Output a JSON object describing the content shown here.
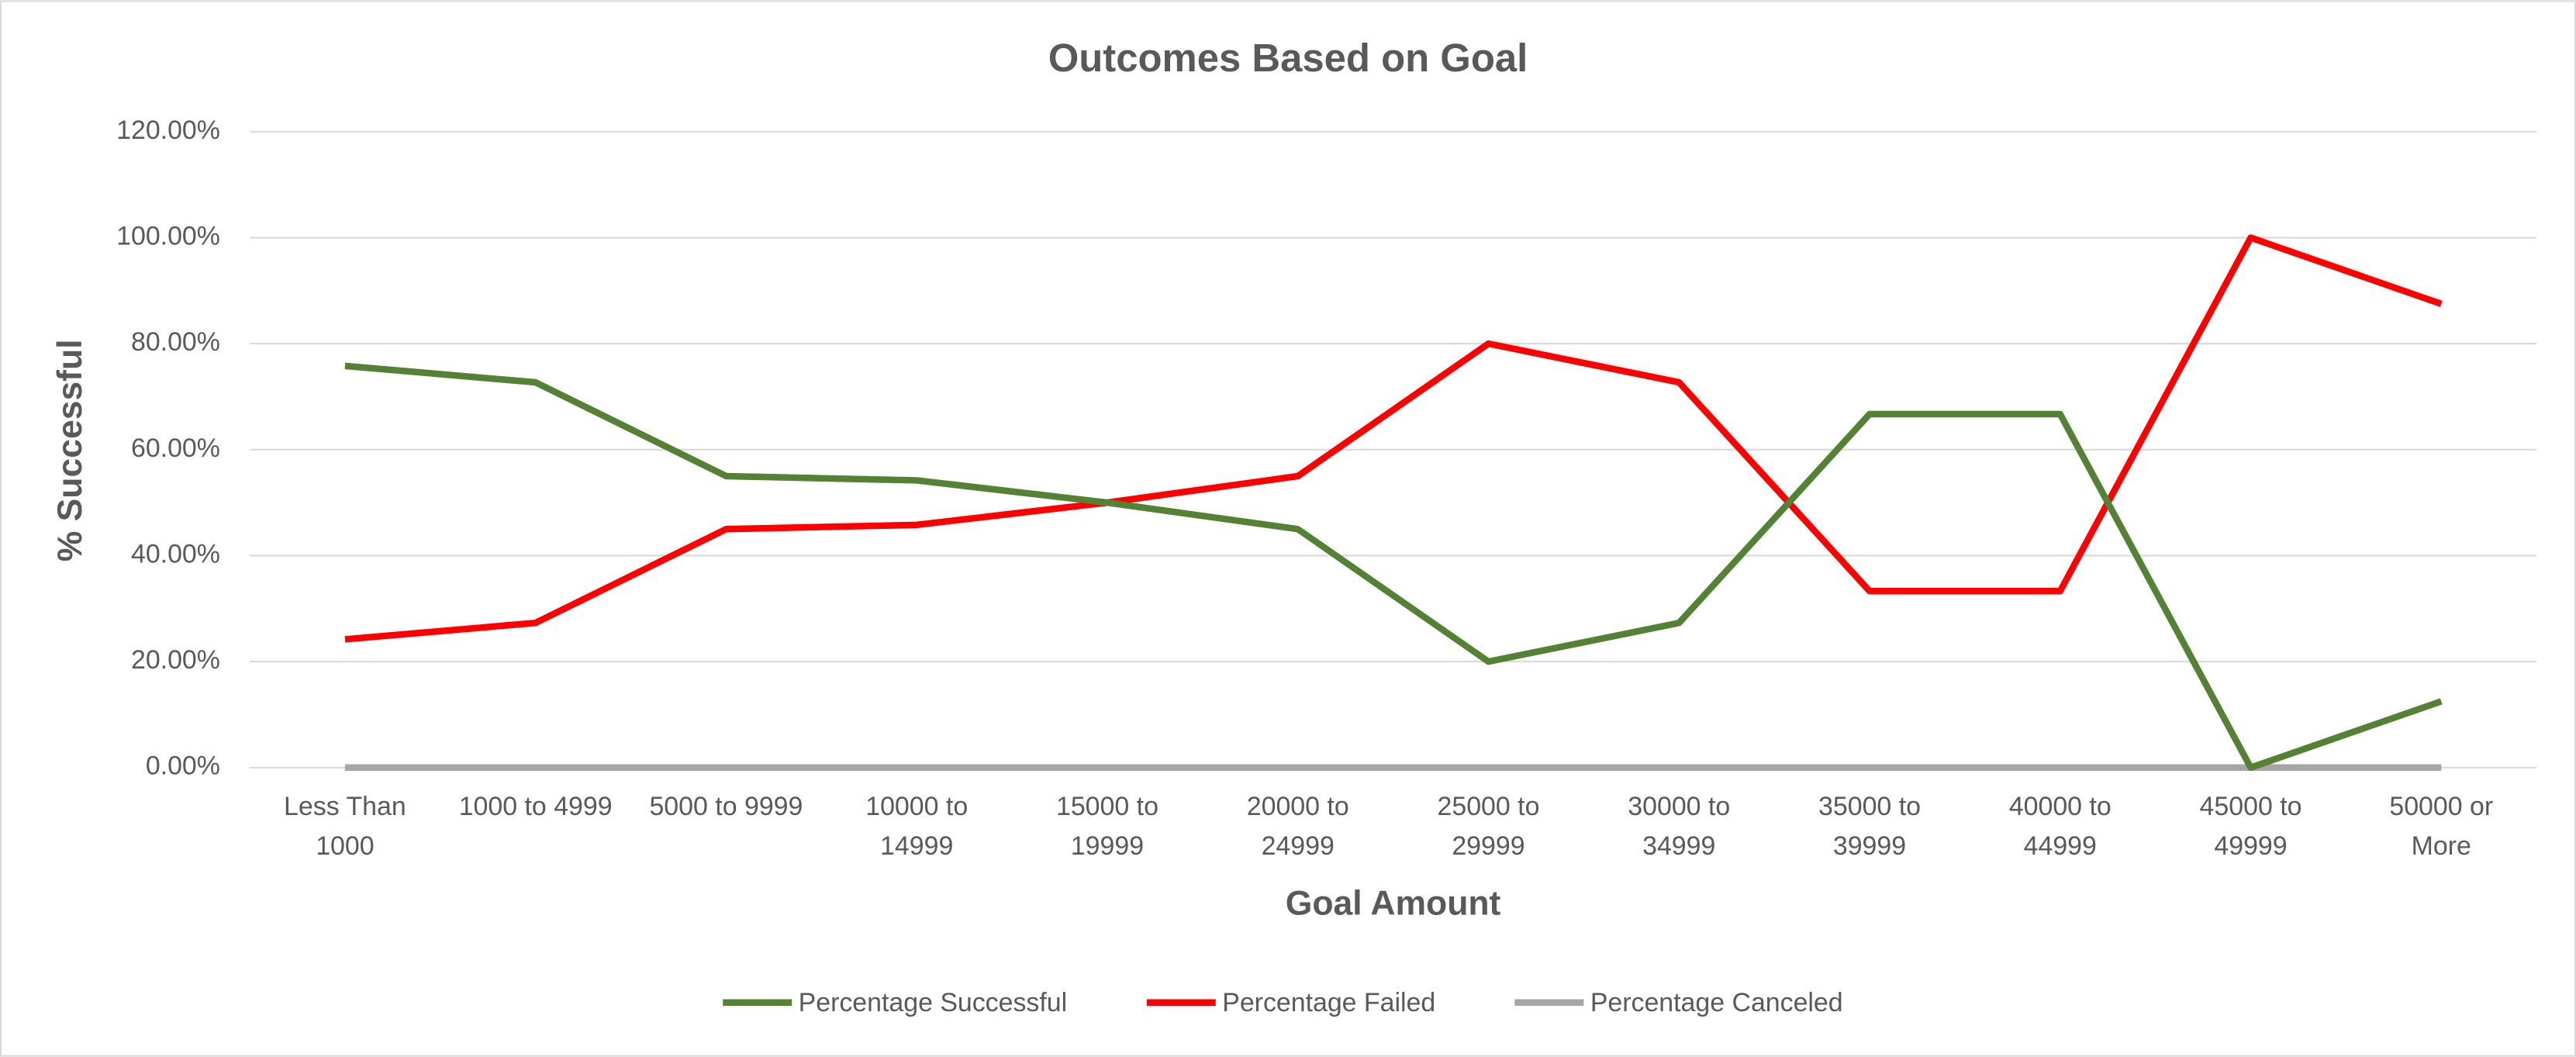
{
  "chart_data": {
    "type": "line",
    "title": "Outcomes Based on Goal",
    "x_label": "Goal Amount",
    "y_label": "% Successful",
    "categories": [
      "Less Than 1000",
      "1000 to 4999",
      "5000 to 9999",
      "10000 to 14999",
      "15000 to 19999",
      "20000 to 24999",
      "25000 to 29999",
      "30000 to 34999",
      "35000 to 39999",
      "40000 to 44999",
      "45000 to 49999",
      "50000 or More"
    ],
    "series": [
      {
        "name": "Percentage Successful",
        "color": "#548235",
        "values": [
          75.8,
          72.7,
          55,
          54.2,
          50,
          45,
          20,
          27.3,
          66.7,
          66.7,
          0,
          12.5
        ]
      },
      {
        "name": "Percentage Failed",
        "color": "#ff0000",
        "values": [
          24.2,
          27.3,
          45,
          45.8,
          50,
          55,
          80,
          72.7,
          33.3,
          33.3,
          100,
          87.5
        ]
      },
      {
        "name": "Percentage Canceled",
        "color": "#a5a5a5",
        "values": [
          0,
          0,
          0,
          0,
          0,
          0,
          0,
          0,
          0,
          0,
          0,
          0
        ]
      }
    ],
    "ylim": [
      0,
      120
    ],
    "yticks": [
      {
        "value": 0,
        "label": "0.00%"
      },
      {
        "value": 20,
        "label": "20.00%"
      },
      {
        "value": 40,
        "label": "40.00%"
      },
      {
        "value": 60,
        "label": "60.00%"
      },
      {
        "value": 80,
        "label": "80.00%"
      },
      {
        "value": 100,
        "label": "100.00%"
      },
      {
        "value": 120,
        "label": "120.00%"
      }
    ],
    "grid": true,
    "legend": "bottom"
  }
}
